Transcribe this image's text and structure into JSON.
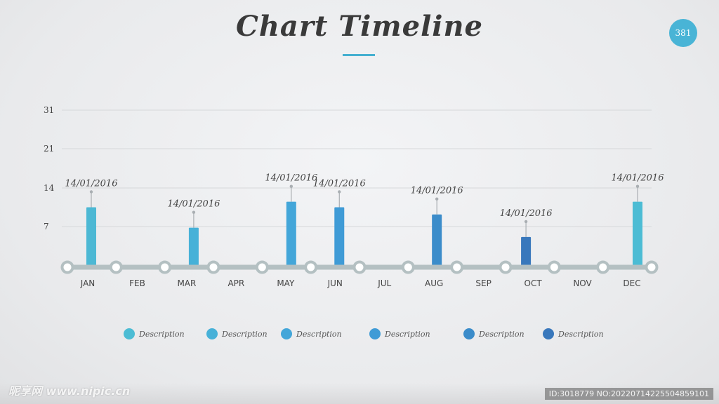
{
  "page": {
    "title": "Chart Timeline",
    "page_number": "381"
  },
  "chart_data": {
    "type": "bar",
    "categories": [
      "JAN",
      "FEB",
      "MAR",
      "APR",
      "MAY",
      "JUN",
      "JUL",
      "AUG",
      "SEP",
      "OCT",
      "NOV",
      "DEC"
    ],
    "y_ticks": [
      "31",
      "21",
      "14",
      "7"
    ],
    "ylim": [
      0,
      31
    ],
    "grid": true,
    "bars": [
      {
        "month": "JAN",
        "value": 10.5,
        "label": "14/01/2016",
        "color": "#4cb8d4"
      },
      {
        "month": "MAR",
        "value": 6.8,
        "label": "14/01/2016",
        "color": "#47b1d8"
      },
      {
        "month": "MAY",
        "value": 11.5,
        "label": "14/01/2016",
        "color": "#43a6d9"
      },
      {
        "month": "JUN",
        "value": 10.5,
        "label": "14/01/2016",
        "color": "#3f9bd6"
      },
      {
        "month": "AUG",
        "value": 9.2,
        "label": "14/01/2016",
        "color": "#3b8cca"
      },
      {
        "month": "OCT",
        "value": 5.2,
        "label": "14/01/2016",
        "color": "#3978bc"
      },
      {
        "month": "DEC",
        "value": 11.5,
        "label": "14/01/2016",
        "color": "#4cbcd4"
      }
    ]
  },
  "legend": [
    {
      "label": "Description",
      "color": "#4cbcd4"
    },
    {
      "label": "Description",
      "color": "#47b1d8"
    },
    {
      "label": "Description",
      "color": "#43a6d9"
    },
    {
      "label": "Description",
      "color": "#3f9bd6"
    },
    {
      "label": "Description",
      "color": "#3b8cca"
    },
    {
      "label": "Description",
      "color": "#3978bc"
    }
  ],
  "watermark": {
    "left": "昵享网 www.nipic.cn",
    "right": "ID:3018779 NO:20220714225504859101"
  }
}
